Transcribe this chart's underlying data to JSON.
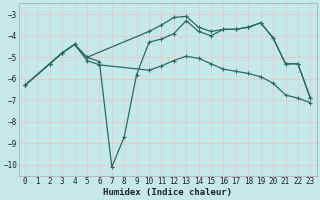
{
  "xlabel": "Humidex (Indice chaleur)",
  "bg_color": "#c5e8e8",
  "grid_color": "#e8c8c8",
  "line_color": "#2a6b60",
  "xlim": [
    -0.5,
    23.5
  ],
  "ylim": [
    -10.5,
    -2.5
  ],
  "xticks": [
    0,
    1,
    2,
    3,
    4,
    5,
    6,
    7,
    8,
    9,
    10,
    11,
    12,
    13,
    14,
    15,
    16,
    17,
    18,
    19,
    20,
    21,
    22,
    23
  ],
  "yticks": [
    -10,
    -9,
    -8,
    -7,
    -6,
    -5,
    -4,
    -3
  ],
  "series1_x": [
    0,
    2,
    3,
    4,
    5,
    10,
    11,
    12,
    13,
    14,
    15,
    16,
    17,
    18,
    19,
    20,
    21,
    22,
    23
  ],
  "series1_y": [
    -6.3,
    -5.3,
    -4.8,
    -4.4,
    -5.0,
    -3.8,
    -3.5,
    -3.15,
    -3.1,
    -3.6,
    -3.8,
    -3.7,
    -3.7,
    -3.6,
    -3.4,
    -4.1,
    -5.3,
    -5.3,
    -6.9
  ],
  "series2_x": [
    0,
    2,
    3,
    4,
    5,
    6,
    7,
    8,
    9,
    10,
    11,
    12,
    13,
    14,
    15,
    16,
    17,
    18,
    19,
    20,
    21,
    22,
    23
  ],
  "series2_y": [
    -6.3,
    -5.3,
    -4.8,
    -4.4,
    -5.0,
    -5.2,
    -10.1,
    -8.7,
    -5.8,
    -4.3,
    -4.15,
    -3.9,
    -3.3,
    -3.8,
    -4.0,
    -3.7,
    -3.7,
    -3.6,
    -3.4,
    -4.1,
    -5.3,
    -5.3,
    -6.9
  ],
  "series3_x": [
    0,
    2,
    3,
    4,
    5,
    6,
    10,
    11,
    12,
    13,
    14,
    15,
    16,
    17,
    18,
    19,
    20,
    21,
    22,
    23
  ],
  "series3_y": [
    -6.3,
    -5.3,
    -4.8,
    -4.4,
    -5.15,
    -5.35,
    -5.6,
    -5.4,
    -5.15,
    -4.95,
    -5.05,
    -5.3,
    -5.55,
    -5.65,
    -5.75,
    -5.9,
    -6.2,
    -6.75,
    -6.9,
    -7.1
  ]
}
